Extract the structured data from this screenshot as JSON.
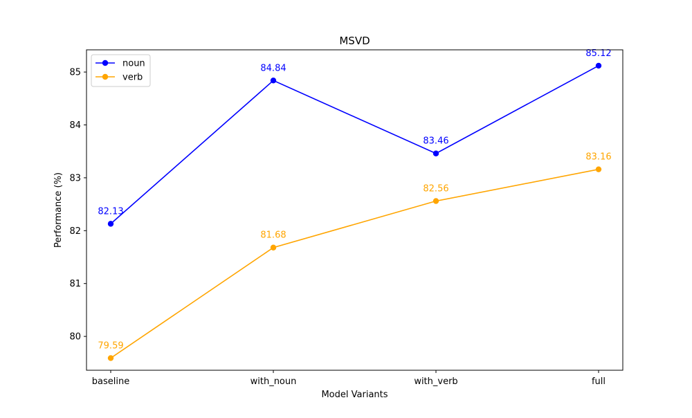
{
  "chart_data": {
    "type": "line",
    "title": "MSVD",
    "xlabel": "Model Variants",
    "ylabel": "Performance (%)",
    "categories": [
      "baseline",
      "with_noun",
      "with_verb",
      "full"
    ],
    "series": [
      {
        "name": "noun",
        "values": [
          82.13,
          84.84,
          83.46,
          85.12
        ],
        "color": "#0000ff",
        "marker": "circle"
      },
      {
        "name": "verb",
        "values": [
          79.59,
          81.68,
          82.56,
          83.16
        ],
        "color": "#ffa500",
        "marker": "circle"
      }
    ],
    "ylim": [
      79.36,
      85.42
    ],
    "yticks": [
      80,
      81,
      82,
      83,
      84,
      85
    ],
    "grid": false,
    "legend": "top-left",
    "data_labels": true
  }
}
